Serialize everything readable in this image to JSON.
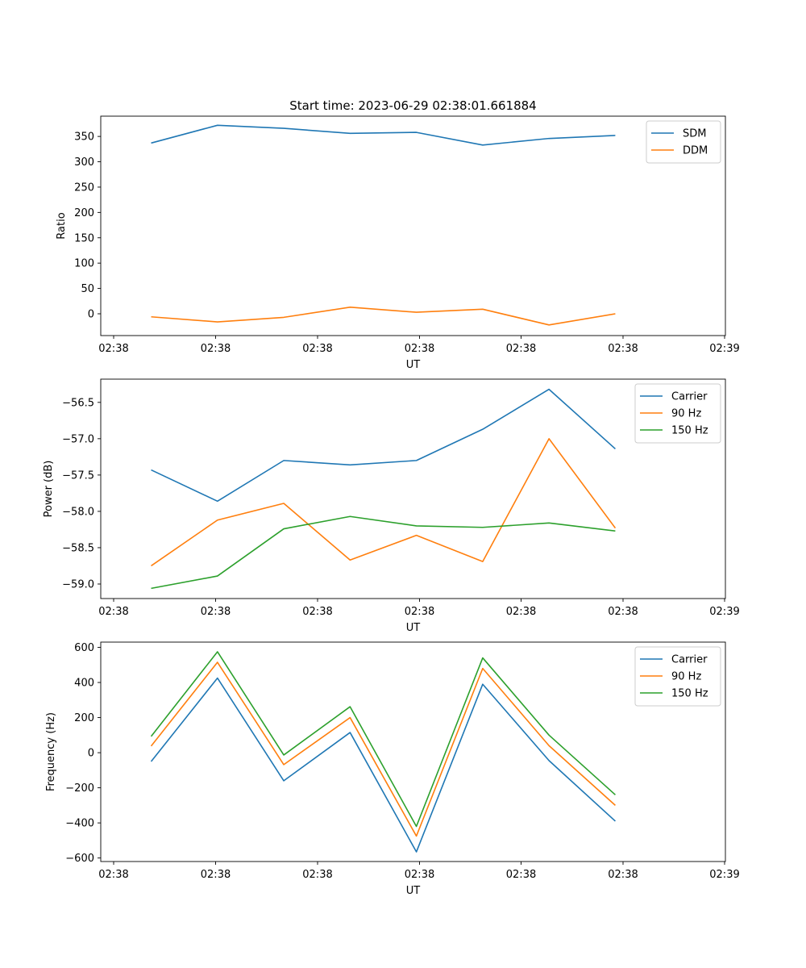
{
  "figure": {
    "title": "Start time: 2023-06-29 02:38:01.661884"
  },
  "chart_data": [
    {
      "type": "line",
      "title": "Start time: 2023-06-29 02:38:01.661884",
      "xlabel": "UT",
      "ylabel": "Ratio",
      "x": [
        1,
        2,
        3,
        4,
        5,
        6,
        7,
        8
      ],
      "x_tick_labels": [
        "02:38",
        "02:38",
        "02:38",
        "02:38",
        "02:38",
        "02:38",
        "02:38",
        "02:39"
      ],
      "y_ticks": [
        0,
        50,
        100,
        150,
        200,
        250,
        300,
        350
      ],
      "ylim": [
        -43,
        390
      ],
      "legend": "top-right",
      "grid": false,
      "series": [
        {
          "name": "SDM",
          "color": "#1f77b4",
          "values": [
            337,
            372,
            366,
            356,
            358,
            333,
            346,
            352
          ]
        },
        {
          "name": "DDM",
          "color": "#ff7f0e",
          "values": [
            -6,
            -16,
            -7,
            13,
            3,
            9,
            -22,
            0
          ]
        }
      ]
    },
    {
      "type": "line",
      "xlabel": "UT",
      "ylabel": "Power (dB)",
      "x": [
        1,
        2,
        3,
        4,
        5,
        6,
        7,
        8
      ],
      "x_tick_labels": [
        "02:38",
        "02:38",
        "02:38",
        "02:38",
        "02:38",
        "02:38",
        "02:38",
        "02:39"
      ],
      "y_ticks": [
        -59.0,
        -58.5,
        -58.0,
        -57.5,
        -57.0,
        -56.5
      ],
      "ylim": [
        -59.2,
        -56.18
      ],
      "legend": "top-right",
      "grid": false,
      "series": [
        {
          "name": "Carrier",
          "color": "#1f77b4",
          "values": [
            -57.43,
            -57.86,
            -57.3,
            -57.36,
            -57.3,
            -56.87,
            -56.32,
            -57.14
          ]
        },
        {
          "name": "90 Hz",
          "color": "#ff7f0e",
          "values": [
            -58.75,
            -58.12,
            -57.89,
            -58.67,
            -58.33,
            -58.69,
            -57.0,
            -58.23
          ]
        },
        {
          "name": "150 Hz",
          "color": "#2ca02c",
          "values": [
            -59.06,
            -58.89,
            -58.24,
            -58.07,
            -58.2,
            -58.22,
            -58.16,
            -58.27
          ]
        }
      ]
    },
    {
      "type": "line",
      "xlabel": "UT",
      "ylabel": "Frequency (Hz)",
      "x": [
        1,
        2,
        3,
        4,
        5,
        6,
        7,
        8
      ],
      "x_tick_labels": [
        "02:38",
        "02:38",
        "02:38",
        "02:38",
        "02:38",
        "02:38",
        "02:38",
        "02:39"
      ],
      "y_ticks": [
        -600,
        -400,
        -200,
        0,
        200,
        400,
        600
      ],
      "ylim": [
        -620,
        630
      ],
      "legend": "top-right",
      "grid": false,
      "series": [
        {
          "name": "Carrier",
          "color": "#1f77b4",
          "values": [
            -50,
            425,
            -160,
            115,
            -565,
            390,
            -45,
            -390
          ]
        },
        {
          "name": "90 Hz",
          "color": "#ff7f0e",
          "values": [
            38,
            515,
            -68,
            200,
            -475,
            480,
            40,
            -300
          ]
        },
        {
          "name": "150 Hz",
          "color": "#2ca02c",
          "values": [
            93,
            575,
            -13,
            262,
            -420,
            540,
            100,
            -240
          ]
        }
      ]
    }
  ]
}
